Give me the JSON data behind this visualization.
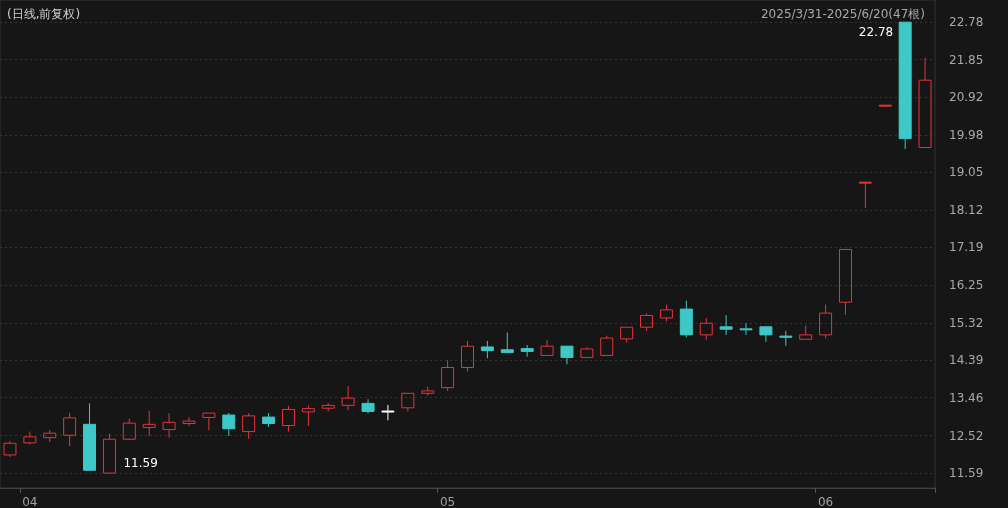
{
  "chart_data": {
    "type": "candlestick",
    "title": "(日线,前复权)",
    "subtitle": "2025/3/31-2025/6/20(47根)",
    "categories": [
      null,
      "04",
      null,
      null,
      null,
      null,
      null,
      null,
      null,
      null,
      null,
      null,
      null,
      null,
      null,
      null,
      null,
      null,
      null,
      null,
      null,
      null,
      "05",
      null,
      null,
      null,
      null,
      null,
      null,
      null,
      null,
      null,
      null,
      null,
      null,
      null,
      null,
      null,
      null,
      null,
      null,
      "06",
      null,
      null,
      null,
      null,
      null
    ],
    "ohlc": [
      [
        12.04,
        12.39,
        11.99,
        12.33
      ],
      [
        12.34,
        12.62,
        12.3,
        12.49
      ],
      [
        12.47,
        12.66,
        12.36,
        12.58
      ],
      [
        12.53,
        13.09,
        12.26,
        12.96
      ],
      [
        12.8,
        13.32,
        11.66,
        11.66
      ],
      [
        11.59,
        12.57,
        11.59,
        12.43
      ],
      [
        12.43,
        12.94,
        12.41,
        12.83
      ],
      [
        12.72,
        13.13,
        12.51,
        12.8
      ],
      [
        12.67,
        13.08,
        12.47,
        12.85
      ],
      [
        12.82,
        12.98,
        12.76,
        12.88
      ],
      [
        12.97,
        13.08,
        12.65,
        13.08
      ],
      [
        13.03,
        13.08,
        12.51,
        12.69
      ],
      [
        12.62,
        13.08,
        12.44,
        13.01
      ],
      [
        12.98,
        13.08,
        12.73,
        12.82
      ],
      [
        12.77,
        13.26,
        12.62,
        13.17
      ],
      [
        13.11,
        13.27,
        12.76,
        13.19
      ],
      [
        13.2,
        13.33,
        13.12,
        13.27
      ],
      [
        13.27,
        13.75,
        13.15,
        13.45
      ],
      [
        13.32,
        13.42,
        13.07,
        13.12
      ],
      [
        13.13,
        13.28,
        12.9,
        13.13
      ],
      [
        13.21,
        13.57,
        13.12,
        13.57
      ],
      [
        13.57,
        13.73,
        13.51,
        13.63
      ],
      [
        13.71,
        14.39,
        13.63,
        14.21
      ],
      [
        14.21,
        14.87,
        14.11,
        14.74
      ],
      [
        14.72,
        14.87,
        14.44,
        14.63
      ],
      [
        14.65,
        15.08,
        14.58,
        14.58
      ],
      [
        14.68,
        14.77,
        14.48,
        14.61
      ],
      [
        14.51,
        14.89,
        14.51,
        14.74
      ],
      [
        14.74,
        14.74,
        14.29,
        14.46
      ],
      [
        14.46,
        14.72,
        14.46,
        14.67
      ],
      [
        14.51,
        15.0,
        14.51,
        14.94
      ],
      [
        14.92,
        15.21,
        14.83,
        15.21
      ],
      [
        15.21,
        15.56,
        15.12,
        15.5
      ],
      [
        15.44,
        15.77,
        15.35,
        15.64
      ],
      [
        15.66,
        15.87,
        14.96,
        15.02
      ],
      [
        15.02,
        15.44,
        14.9,
        15.31
      ],
      [
        15.22,
        15.51,
        15.02,
        15.16
      ],
      [
        15.17,
        15.31,
        15.02,
        15.15
      ],
      [
        15.22,
        15.22,
        14.85,
        15.02
      ],
      [
        14.99,
        15.12,
        14.75,
        14.96
      ],
      [
        14.91,
        15.25,
        14.91,
        15.02
      ],
      [
        15.02,
        15.77,
        14.93,
        15.56
      ],
      [
        15.83,
        17.14,
        15.52,
        17.14
      ],
      [
        18.81,
        18.81,
        18.17,
        18.81
      ],
      [
        20.72,
        20.72,
        20.72,
        20.72
      ],
      [
        22.78,
        22.78,
        19.63,
        19.89
      ],
      [
        19.67,
        21.9,
        19.67,
        21.34
      ]
    ],
    "colors": [
      "#e8323c",
      "#e8323c",
      "#e8323c",
      "#e8323c",
      "#3ec8c8",
      "#e8323c",
      "#e8323c",
      "#e8323c",
      "#e8323c",
      "#e8323c",
      "#e8323c",
      "#3ec8c8",
      "#e8323c",
      "#3ec8c8",
      "#e8323c",
      "#e8323c",
      "#e8323c",
      "#e8323c",
      "#3ec8c8",
      "#ffffff",
      "#e8323c",
      "#e8323c",
      "#e8323c",
      "#e8323c",
      "#3ec8c8",
      "#3ec8c8",
      "#3ec8c8",
      "#e8323c",
      "#3ec8c8",
      "#e8323c",
      "#e8323c",
      "#e8323c",
      "#e8323c",
      "#e8323c",
      "#3ec8c8",
      "#e8323c",
      "#3ec8c8",
      "#3ec8c8",
      "#3ec8c8",
      "#3ec8c8",
      "#e8323c",
      "#e8323c",
      "#e8323c",
      "#e8323c",
      "#e8323c",
      "#3ec8c8",
      "#e8323c"
    ],
    "ylim": [
      11.22,
      23.33
    ],
    "yticks": [
      11.59,
      12.52,
      13.46,
      14.39,
      15.32,
      16.25,
      17.19,
      18.12,
      19.05,
      19.98,
      20.92,
      21.85,
      22.78
    ],
    "grid": "y",
    "annotations": [
      "11.59",
      "22.78"
    ]
  }
}
